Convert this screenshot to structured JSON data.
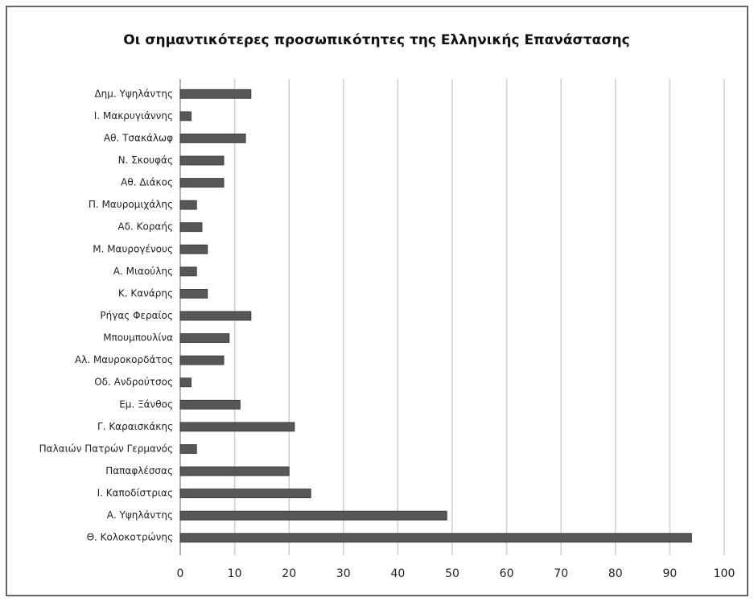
{
  "chart_data": {
    "type": "bar",
    "orientation": "horizontal",
    "title": "Οι σημαντικότερες προσωπικότητες της Ελληνικής Επανάστασης",
    "categories": [
      "Δημ. Υψηλάντης",
      "Ι. Μακρυγιάννης",
      "Αθ. Τσακάλωφ",
      "Ν. Σκουφάς",
      "Αθ. Διάκος",
      "Π. Μαυρομιχάλης",
      "Αδ. Κοραής",
      "Μ. Μαυρογένους",
      "Α. Μιαούλης",
      "Κ. Κανάρης",
      "Ρήγας Φεραίος",
      "Μπουμπουλίνα",
      "Αλ. Μαυροκορδάτος",
      "Οδ. Ανδρούτσος",
      "Εμ. Ξάνθος",
      "Γ. Καραισκάκης",
      "Παλαιών Πατρών Γερμανός",
      "Παπαφλέσσας",
      "Ι. Καποδίστριας",
      "Α. Υψηλάντης",
      "Θ. Κολοκοτρώνης"
    ],
    "values": [
      13,
      2,
      12,
      8,
      8,
      3,
      4,
      5,
      3,
      5,
      13,
      9,
      8,
      2,
      11,
      21,
      3,
      20,
      24,
      49,
      94
    ],
    "color": "#575757",
    "xlim": [
      0,
      100
    ],
    "xticks": [
      0,
      10,
      20,
      30,
      40,
      50,
      60,
      70,
      80,
      90,
      100
    ],
    "grid": true
  }
}
